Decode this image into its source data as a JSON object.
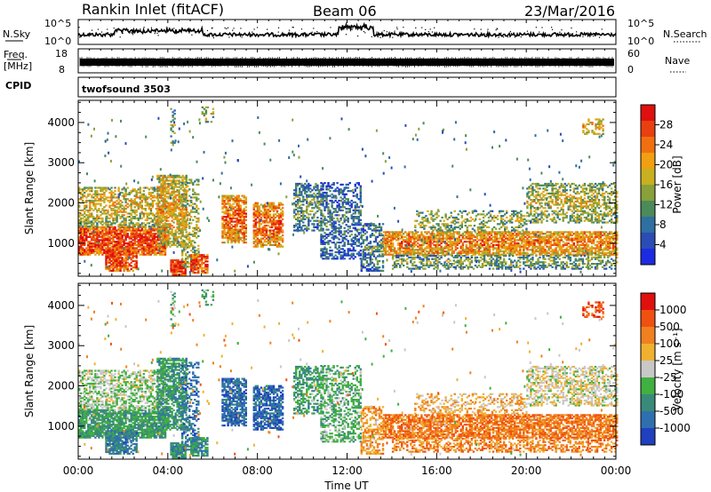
{
  "header": {
    "station": "Rankin Inlet (fitACF)",
    "beam": "Beam 06",
    "date": "23/Mar/2016"
  },
  "strip_nsky": {
    "left_label": "N.Sky",
    "right_label": "N.Search",
    "left_ticks": [
      "10^5",
      "10^0"
    ],
    "right_ticks": [
      "10^5",
      "10^0"
    ]
  },
  "strip_freq": {
    "left_label_1": "Freq.",
    "left_label_2": "[MHz]",
    "right_label": "Nave",
    "left_ticks": [
      "18",
      "8"
    ],
    "right_ticks": [
      "60",
      "0"
    ]
  },
  "cpid": {
    "label": "CPID",
    "value": "twofsound 3503"
  },
  "chart_data": [
    {
      "type": "heatmap",
      "panel": "power",
      "ylabel": "Slant Range [km]",
      "yticks": [
        "1000",
        "2000",
        "3000",
        "4000"
      ],
      "ylim": [
        180,
        4550
      ],
      "x_ticklabels": [
        "00:00",
        "04:00",
        "08:00",
        "12:00",
        "16:00",
        "20:00",
        "00:00"
      ],
      "xlim_hours": [
        0,
        24
      ],
      "colorbar": {
        "label": "Power [dB]",
        "ticks": [
          "4",
          "8",
          "12",
          "16",
          "20",
          "24",
          "28"
        ],
        "range": [
          0,
          32
        ],
        "colors": [
          "#1d2be0",
          "#2b4cb4",
          "#2f6fa2",
          "#4c8a5a",
          "#8aa03a",
          "#c8b020",
          "#f0a010",
          "#f07010",
          "#e84010",
          "#e01010"
        ]
      }
    },
    {
      "type": "heatmap",
      "panel": "velocity",
      "ylabel": "Slant Range [km]",
      "yticks": [
        "1000",
        "2000",
        "3000",
        "4000"
      ],
      "ylim": [
        180,
        4550
      ],
      "x_ticklabels": [
        "00:00",
        "04:00",
        "08:00",
        "12:00",
        "16:00",
        "20:00",
        "00:00"
      ],
      "xlim_hours": [
        0,
        24
      ],
      "xlabel": "Time UT",
      "colorbar": {
        "label": "Velocity [m s⁻¹]",
        "ticks": [
          "1000",
          "500",
          "100",
          "25",
          "-25",
          "-100",
          "-500",
          "-1000"
        ],
        "colors": [
          "#2040c0",
          "#2f6fb0",
          "#3a8a7a",
          "#40b040",
          "#c8c8c8",
          "#f0b030",
          "#f08020",
          "#f05010",
          "#e01010"
        ]
      }
    }
  ]
}
